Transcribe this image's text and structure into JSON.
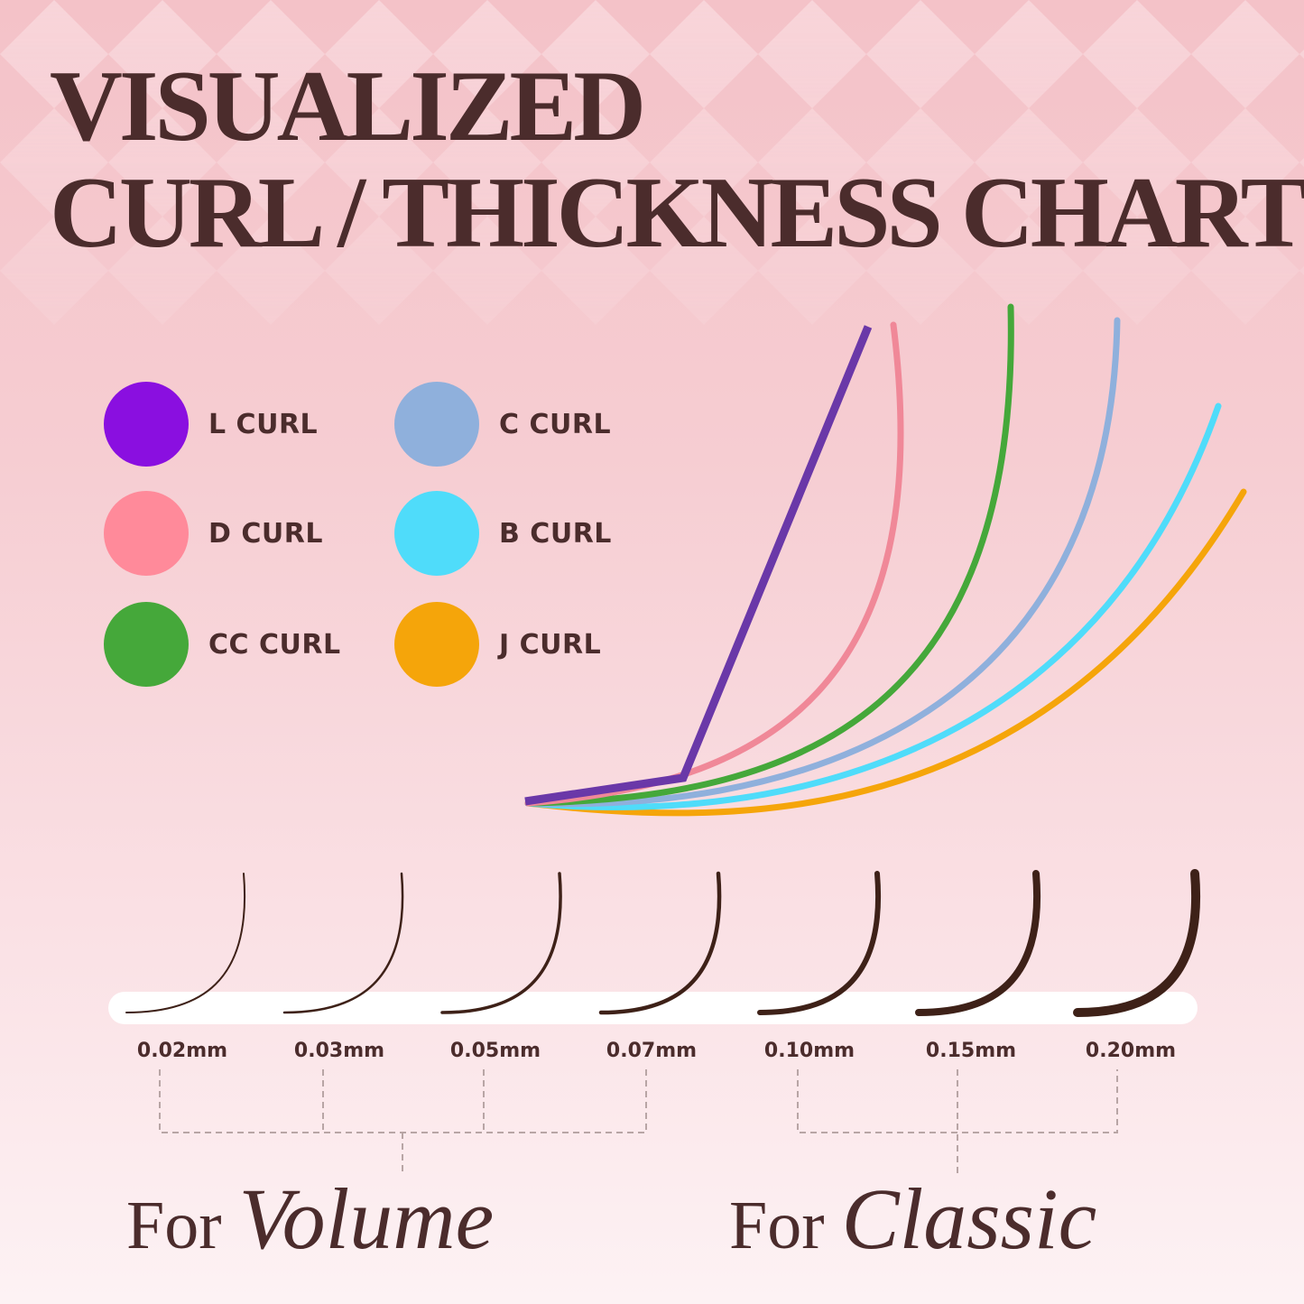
{
  "title": {
    "line1": "VISUALIZED",
    "line2": "CURL / THICKNESS CHART"
  },
  "legend": [
    {
      "label": "L CURL",
      "color": "#8a0fe0"
    },
    {
      "label": "D CURL",
      "color": "#ff8a9a"
    },
    {
      "label": "CC CURL",
      "color": "#45a83a"
    },
    {
      "label": "C CURL",
      "color": "#8fb0dc"
    },
    {
      "label": "B CURL",
      "color": "#4fdcfa"
    },
    {
      "label": "J CURL",
      "color": "#f5a50a"
    }
  ],
  "thicknesses": [
    "0.02mm",
    "0.03mm",
    "0.05mm",
    "0.07mm",
    "0.10mm",
    "0.15mm",
    "0.20mm"
  ],
  "groups": {
    "volume": {
      "prefix": "For",
      "word": "Volume"
    },
    "classic": {
      "prefix": "For",
      "word": "Classic"
    }
  },
  "colors": {
    "text": "#4b2c2c",
    "lash": "#3e2118"
  }
}
